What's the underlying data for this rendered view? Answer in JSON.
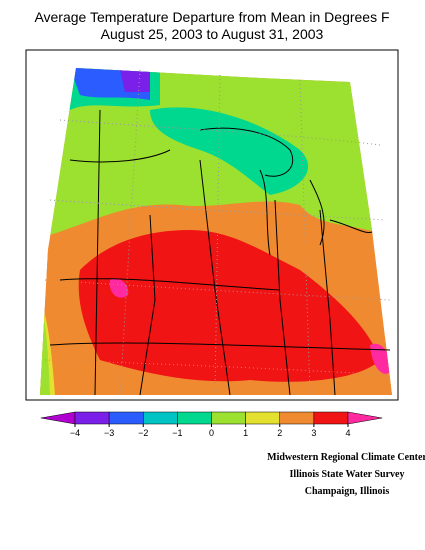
{
  "title": [
    "Average Temperature Departure from Mean in Degrees F",
    "August 25, 2003 to August 31, 2003"
  ],
  "legend": {
    "ticks": [
      {
        "value": -4,
        "label": "−4"
      },
      {
        "value": -3,
        "label": "−3"
      },
      {
        "value": -2,
        "label": "−2"
      },
      {
        "value": -1,
        "label": "−1"
      },
      0,
      1,
      2,
      3,
      4
    ],
    "colors": [
      "#b000d0",
      "#7a20e8",
      "#2a5cff",
      "#00c4c4",
      "#00d890",
      "#9ce030",
      "#e4e030",
      "#f08a30",
      "#f01414",
      "#ff2aa0"
    ]
  },
  "credits": [
    "Midwestern Regional Climate Center",
    "Illinois State Water Survey",
    "Champaign, Illinois"
  ]
}
